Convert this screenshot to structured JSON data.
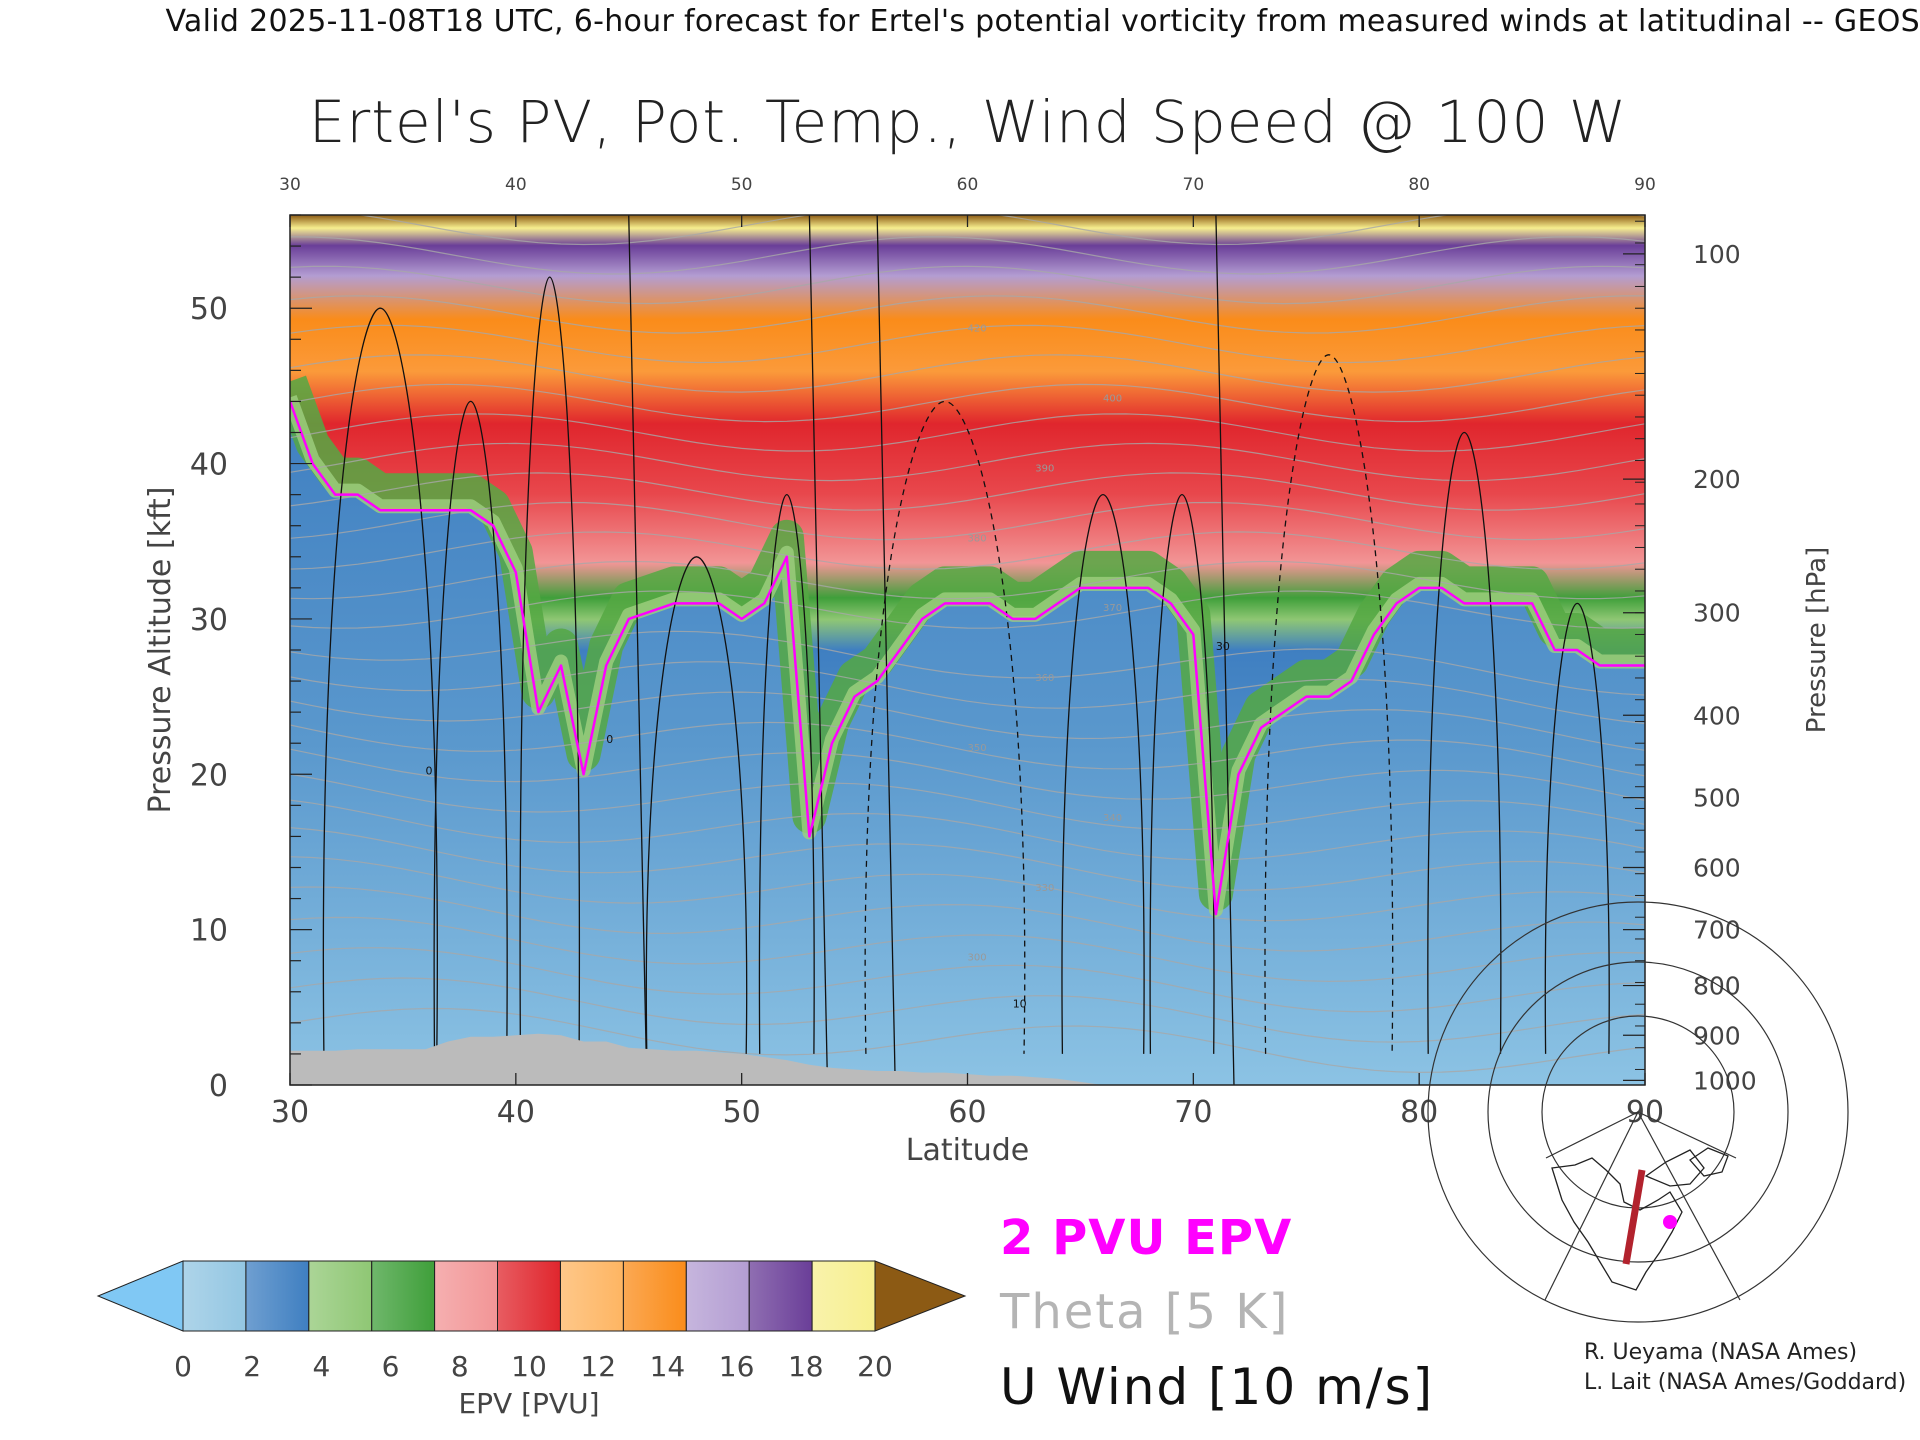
{
  "header": {
    "valid_line": "Valid 2025-11-08T18 UTC, 6-hour forecast for Ertel's potential vorticity from measured winds at latitudinal -- GEOS"
  },
  "chart_data": {
    "type": "heatmap",
    "title": "Ertel's PV, Pot. Temp., Wind Speed @ 100 W",
    "xlabel": "Latitude",
    "ylabel": "Pressure Altitude [kft]",
    "y2label": "Pressure [hPa]",
    "xlim": [
      30,
      90
    ],
    "ylim": [
      0,
      56
    ],
    "x_ticks": [
      "30",
      "40",
      "50",
      "60",
      "70",
      "80",
      "90"
    ],
    "x_ticks_top": [
      "30",
      "40",
      "50",
      "60",
      "70",
      "80",
      "90"
    ],
    "y_ticks": [
      "0",
      "10",
      "20",
      "30",
      "40",
      "50"
    ],
    "pressure_ticks": [
      {
        "label": "100",
        "kft": 53.5
      },
      {
        "label": "200",
        "kft": 39.0
      },
      {
        "label": "300",
        "kft": 30.4
      },
      {
        "label": "400",
        "kft": 23.8
      },
      {
        "label": "500",
        "kft": 18.5
      },
      {
        "label": "600",
        "kft": 14.0
      },
      {
        "label": "700",
        "kft": 10.0
      },
      {
        "label": "800",
        "kft": 6.4
      },
      {
        "label": "900",
        "kft": 3.2
      },
      {
        "label": "1000",
        "kft": 0.3
      }
    ],
    "epv_colorbar": {
      "label": "EPV [PVU]",
      "ticks": [
        "0",
        "2",
        "4",
        "6",
        "8",
        "10",
        "12",
        "14",
        "16",
        "18",
        "20"
      ],
      "colors": [
        "#93c6e2",
        "#3f7fc1",
        "#8fc774",
        "#3f9f3a",
        "#f29596",
        "#e0262d",
        "#feb562",
        "#fa8c1a",
        "#b39dd2",
        "#6a3e98",
        "#f7ef8f"
      ],
      "under_color": "#80c8f4",
      "over_color": "#8c5a14"
    },
    "series": [
      {
        "name": "2 PVU EPV",
        "color": "#ff00ff",
        "x": [
          30,
          31,
          32,
          33,
          34,
          35,
          36,
          38,
          39,
          40,
          41,
          42,
          43,
          44,
          45,
          47,
          49,
          50,
          51,
          52,
          53,
          54,
          55,
          56,
          57,
          58,
          59,
          60,
          61,
          62,
          63,
          64,
          65,
          66,
          67,
          68,
          69,
          70,
          71,
          72,
          73,
          74,
          75,
          76,
          77,
          78,
          79,
          80,
          81,
          82,
          83,
          84,
          85,
          86,
          87,
          88,
          89,
          90
        ],
        "y": [
          44,
          40,
          38,
          38,
          37,
          37,
          37,
          37,
          36,
          33,
          24,
          27,
          20,
          27,
          30,
          31,
          31,
          30,
          31,
          34,
          16,
          22,
          25,
          26,
          28,
          30,
          31,
          31,
          31,
          30,
          30,
          31,
          32,
          32,
          32,
          32,
          31,
          29,
          11,
          20,
          23,
          24,
          25,
          25,
          26,
          29,
          31,
          32,
          32,
          31,
          31,
          31,
          31,
          28,
          28,
          27,
          27,
          27
        ]
      },
      {
        "name": "Theta [5 K]",
        "color": "#b4b4b4",
        "labels": [
          "300",
          "330",
          "340",
          "350",
          "360",
          "370",
          "380",
          "390",
          "400",
          "420"
        ]
      },
      {
        "name": "U Wind [10 m/s]",
        "color": "#111111",
        "labels": [
          "0",
          "10",
          "30"
        ]
      }
    ],
    "grid": false
  },
  "legend": {
    "epv_label": "2 PVU EPV",
    "theta_label": "Theta [5 K]",
    "uwind_label": "U Wind [10 m/s]"
  },
  "credits": {
    "line1": "R. Ueyama (NASA Ames)",
    "line2": "L. Lait (NASA Ames/Goddard)"
  },
  "colors": {
    "stratosphere_red": "#e0262d",
    "troposphere_blue": "#3f7fc1",
    "epv_contour": "#ff00ff",
    "terrain": "#bbbbbb",
    "section_line": "#b2222d"
  }
}
